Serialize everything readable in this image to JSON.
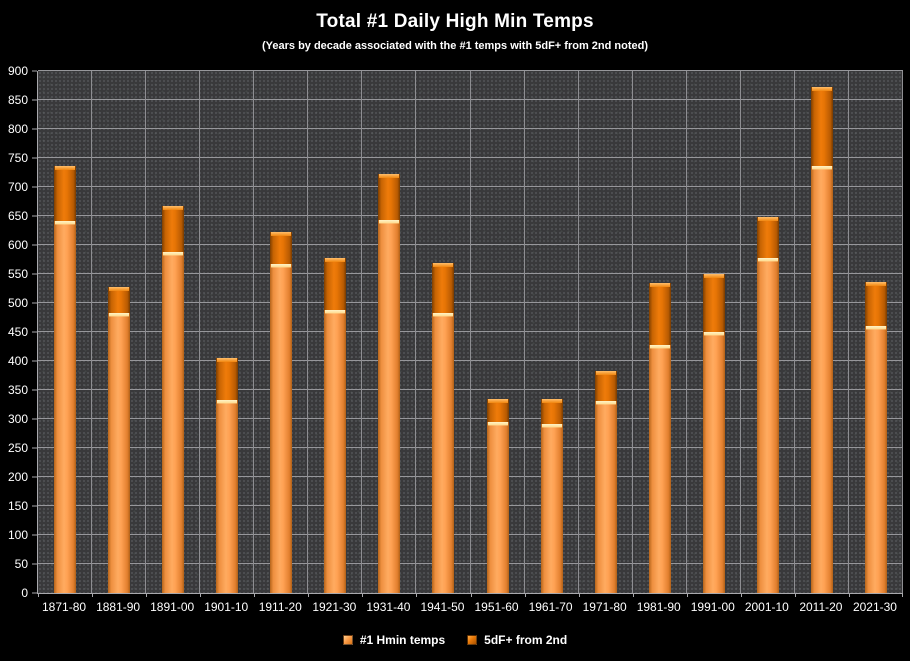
{
  "window": {
    "background": "#000000"
  },
  "chart_data": {
    "type": "bar",
    "stacked": true,
    "title": "Total #1 Daily High Min Temps",
    "subtitle": "(Years by decade associated  with the #1 temps with 5dF+ from 2nd noted)",
    "categories": [
      "1871-80",
      "1881-90",
      "1891-00",
      "1901-10",
      "1911-20",
      "1921-30",
      "1931-40",
      "1941-50",
      "1951-60",
      "1961-70",
      "1971-80",
      "1981-90",
      "1991-00",
      "2001-10",
      "2011-20",
      "2021-30"
    ],
    "series": [
      {
        "name": "#1 Hmin temps",
        "role": "base-segment",
        "color": "#FA9D4F",
        "values": [
          641,
          483,
          588,
          333,
          567,
          488,
          643,
          482,
          295,
          291,
          331,
          428,
          450,
          577,
          737,
          461
        ]
      },
      {
        "name": "5dF+ from 2nd",
        "role": "top-segment",
        "color": "#E87808",
        "values": [
          96,
          44,
          80,
          73,
          56,
          90,
          80,
          87,
          39,
          43,
          52,
          107,
          100,
          71,
          136,
          76
        ]
      }
    ],
    "stack_totals": [
      737,
      527,
      668,
      406,
      623,
      578,
      723,
      569,
      334,
      334,
      383,
      535,
      550,
      648,
      873,
      537
    ],
    "ylim": [
      0,
      900
    ],
    "y_tick_step": 50,
    "y_ticks": [
      0,
      50,
      100,
      150,
      200,
      250,
      300,
      350,
      400,
      450,
      500,
      550,
      600,
      650,
      700,
      750,
      800,
      850,
      900
    ],
    "grid": true,
    "vertical_category_gridlines": true,
    "legend_position": "bottom"
  },
  "colors": {
    "background": "#000000",
    "plot_background": "#39393B",
    "gridline": "#97979B",
    "axis_text": "#FFFFFF",
    "title_text": "#FFFFFF",
    "bar_light": "#FA9D4F",
    "bar_dark": "#E87808"
  }
}
